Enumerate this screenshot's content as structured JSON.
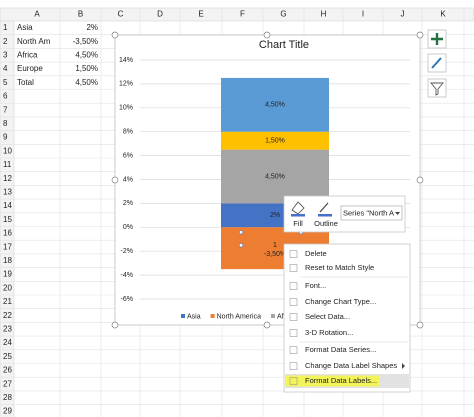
{
  "spreadsheet": {
    "columns": [
      "A",
      "B",
      "C",
      "D",
      "E",
      "F",
      "G",
      "H",
      "I",
      "J",
      "K"
    ],
    "rows": [
      1,
      2,
      3,
      4,
      5,
      6,
      7,
      8,
      9,
      10,
      11,
      12,
      13,
      14,
      15,
      16,
      17,
      18,
      19,
      20,
      21,
      22,
      23,
      24,
      25,
      26,
      27,
      28,
      29
    ],
    "cells": [
      [
        "Asia",
        "2%"
      ],
      [
        "North Am",
        "-3,50%"
      ],
      [
        "Africa",
        "4,50%"
      ],
      [
        "Europe",
        "1,50%"
      ],
      [
        "Total",
        "4,50%"
      ]
    ]
  },
  "chart_data": {
    "type": "stacked_bar",
    "title": "Chart Title",
    "categories": [
      null
    ],
    "series": [
      {
        "name": "Asia",
        "color": "#4472c4",
        "values": [
          2
        ],
        "value_labels": [
          "2%"
        ]
      },
      {
        "name": "North America",
        "color": "#ed7d31",
        "values": [
          -3.5
        ],
        "value_labels": [
          "-3,50%"
        ]
      },
      {
        "name": "Africa",
        "color": "#a5a5a5",
        "values": [
          4.5
        ],
        "value_labels": [
          "4,50%"
        ]
      },
      {
        "name": "Europe",
        "color": "#ffc000",
        "values": [
          1.5
        ],
        "value_labels": [
          "1,50%"
        ]
      },
      {
        "name": "Total",
        "color": "#5b9bd5",
        "values": [
          4.5
        ],
        "value_labels": [
          "4,50%"
        ]
      }
    ],
    "annotations": [
      "1"
    ],
    "ylim": [
      -6,
      14
    ],
    "yticks": [
      {
        "value": -6,
        "label": "-6%"
      },
      {
        "value": -4,
        "label": "-4%"
      },
      {
        "value": -2,
        "label": "-2%"
      },
      {
        "value": 0,
        "label": "0%"
      },
      {
        "value": 2,
        "label": "2%"
      },
      {
        "value": 4,
        "label": "4%"
      },
      {
        "value": 6,
        "label": "6%"
      },
      {
        "value": 8,
        "label": "8%"
      },
      {
        "value": 10,
        "label": "10%"
      },
      {
        "value": 12,
        "label": "12%"
      },
      {
        "value": 14,
        "label": "14%"
      }
    ],
    "grid": true,
    "legend": "bottom"
  },
  "mini_toolbar": {
    "fill": "Fill",
    "outline": "Outline",
    "series_box": "Series \"North A"
  },
  "context_menu": {
    "items": [
      {
        "label": "Delete"
      },
      {
        "label": "Reset to Match Style"
      },
      {
        "label": "Font..."
      },
      {
        "label": "Change Chart Type..."
      },
      {
        "label": "Select Data..."
      },
      {
        "label": "3-D Rotation...",
        "disabled": true
      },
      {
        "label": "Format Data Series..."
      },
      {
        "label": "Change Data Label Shapes"
      },
      {
        "label": "Format Data Labels..."
      }
    ]
  }
}
